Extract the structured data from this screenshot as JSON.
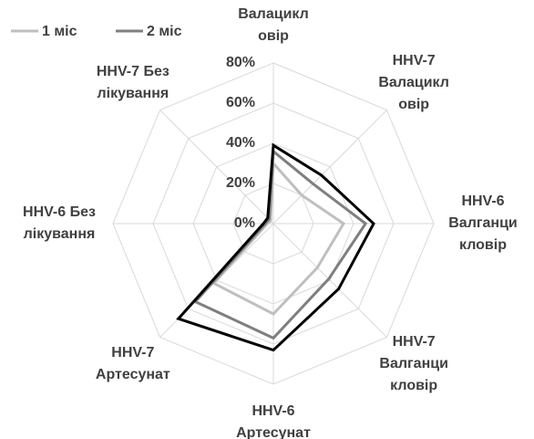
{
  "chart_data": {
    "type": "radar",
    "categories": [
      "Валацикл\nовір",
      "HHV-7\nВалацикл\nовір",
      "HHV-6\nВалганци\nкловір",
      "HHV-7\nВалганци\nкловір",
      "HHV-6\nАртесунат",
      "HHV-7\nАртесунат",
      "HHV-6 Без\nлікування",
      "HHV-7 Без\nлікування"
    ],
    "series": [
      {
        "name": "1 міс",
        "color": "#bfbfbf",
        "values": [
          30,
          20,
          35,
          31,
          45,
          42,
          3,
          2
        ]
      },
      {
        "name": "2 міс",
        "color": "#7f7f7f",
        "values": [
          36,
          28,
          46,
          39,
          57,
          55,
          4,
          3
        ]
      },
      {
        "color": "#000000",
        "values": [
          39,
          34,
          50,
          46,
          63,
          67,
          5,
          4
        ]
      }
    ],
    "rlim": [
      0,
      80
    ],
    "rticks": [
      {
        "value": 0,
        "label": "0%"
      },
      {
        "value": 20,
        "label": "20%"
      },
      {
        "value": 40,
        "label": "40%"
      },
      {
        "value": 60,
        "label": "60%"
      },
      {
        "value": 80,
        "label": "80%"
      }
    ],
    "grid": true,
    "legend": "top-left"
  }
}
